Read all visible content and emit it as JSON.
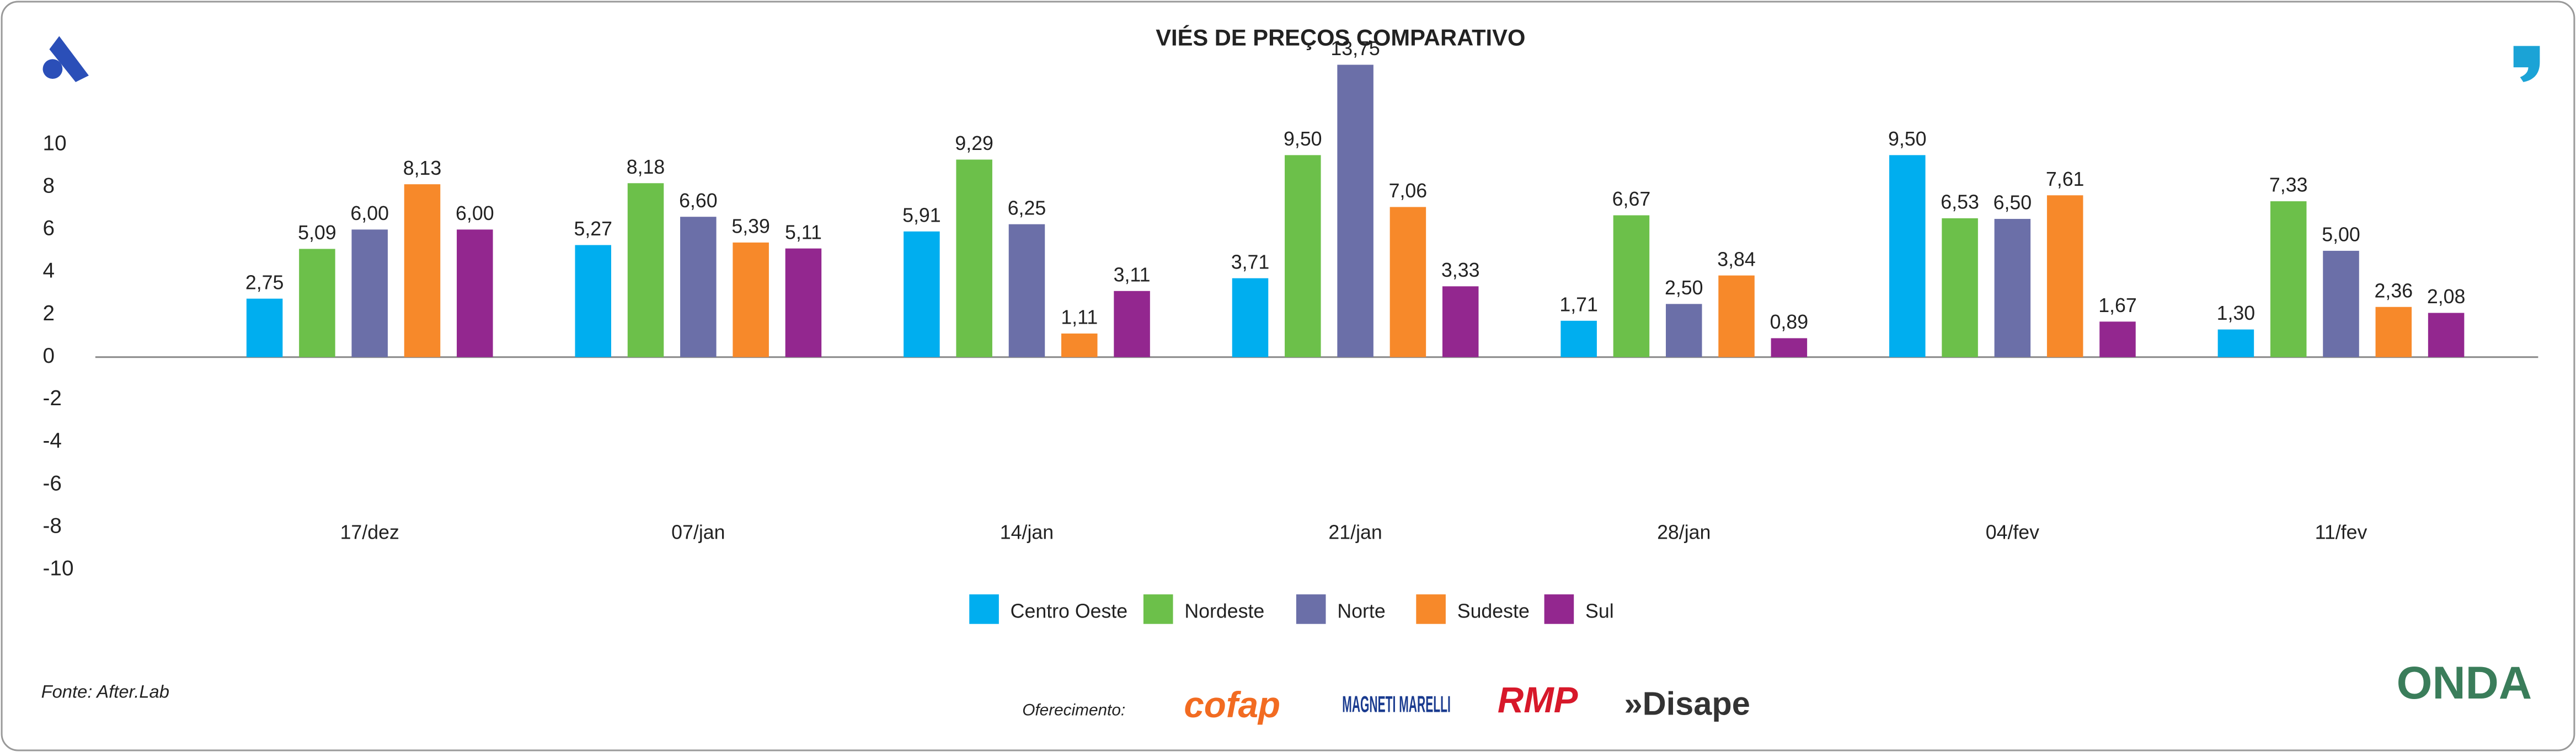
{
  "chart_data": {
    "type": "bar",
    "title": "VIÉS DE PREÇOS COMPARATIVO",
    "categories": [
      "17/dez",
      "07/jan",
      "14/jan",
      "21/jan",
      "28/jan",
      "04/fev",
      "11/fev"
    ],
    "series": [
      {
        "name": "Centro Oeste",
        "color": "#00aeef",
        "values": [
          2.75,
          5.27,
          5.91,
          3.71,
          1.71,
          9.5,
          1.3
        ],
        "value_labels": [
          "2,75",
          "5,27",
          "5,91",
          "3,71",
          "1,71",
          "9,50",
          "1,30"
        ]
      },
      {
        "name": "Nordeste",
        "color": "#6cc04a",
        "values": [
          5.09,
          8.18,
          9.29,
          9.5,
          6.67,
          6.53,
          7.33
        ],
        "value_labels": [
          "5,09",
          "8,18",
          "9,29",
          "9,50",
          "6,67",
          "6,53",
          "7,33"
        ]
      },
      {
        "name": "Norte",
        "color": "#6b6fa8",
        "values": [
          6.0,
          6.6,
          6.25,
          13.75,
          2.5,
          6.5,
          5.0
        ],
        "value_labels": [
          "6,00",
          "6,60",
          "6,25",
          "13,75",
          "2,50",
          "6,50",
          "5,00"
        ]
      },
      {
        "name": "Sudeste",
        "color": "#f7892a",
        "values": [
          8.13,
          5.39,
          1.11,
          7.06,
          3.84,
          7.61,
          2.36
        ],
        "value_labels": [
          "8,13",
          "5,39",
          "1,11",
          "7,06",
          "3,84",
          "7,61",
          "2,36"
        ]
      },
      {
        "name": "Sul",
        "color": "#93278f",
        "values": [
          6.0,
          5.11,
          3.11,
          3.33,
          0.89,
          1.67,
          2.08
        ],
        "value_labels": [
          "6,00",
          "5,11",
          "3,11",
          "3,33",
          "0,89",
          "1,67",
          "2,08"
        ]
      }
    ],
    "ylim": [
      -10,
      14
    ],
    "yticks": [
      -10,
      -8,
      -6,
      -4,
      -2,
      0,
      2,
      4,
      6,
      8,
      10
    ],
    "grid": false,
    "legend": "bottom",
    "source": "Fonte: After.Lab",
    "sponsor_label": "Oferecimento:",
    "sponsors": [
      "cofap",
      "MAGNETI MARELLI",
      "RMP",
      "»Disape"
    ],
    "brand": "ONDA"
  }
}
